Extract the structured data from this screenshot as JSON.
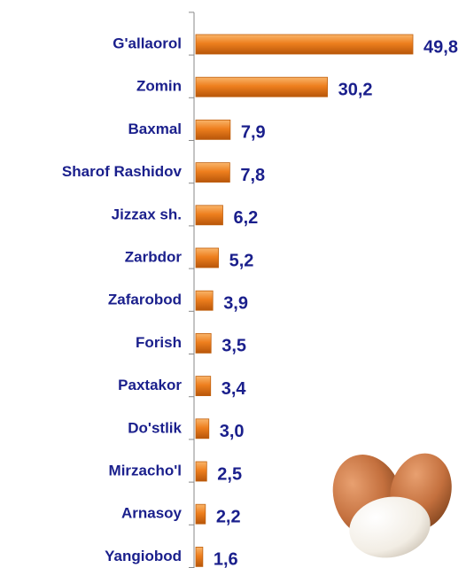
{
  "chart_data": {
    "type": "bar",
    "orientation": "horizontal",
    "categories": [
      "G'allaorol",
      "Zomin",
      "Baxmal",
      "Sharof Rashidov",
      "Jizzax sh.",
      "Zarbdor",
      "Zafarobod",
      "Forish",
      "Paxtakor",
      "Do'stlik",
      "Mirzacho'l",
      "Arnasoy",
      "Yangiobod"
    ],
    "values": [
      49.8,
      30.2,
      7.9,
      7.8,
      6.2,
      5.2,
      3.9,
      3.5,
      3.4,
      3.0,
      2.5,
      2.2,
      1.6
    ],
    "value_labels": [
      "49,8",
      "30,2",
      "7,9",
      "7,8",
      "6,2",
      "5,2",
      "3,9",
      "3,5",
      "3,4",
      "3,0",
      "2,5",
      "2,2",
      "1,6"
    ],
    "color": "#ee7f1e"
  }
}
